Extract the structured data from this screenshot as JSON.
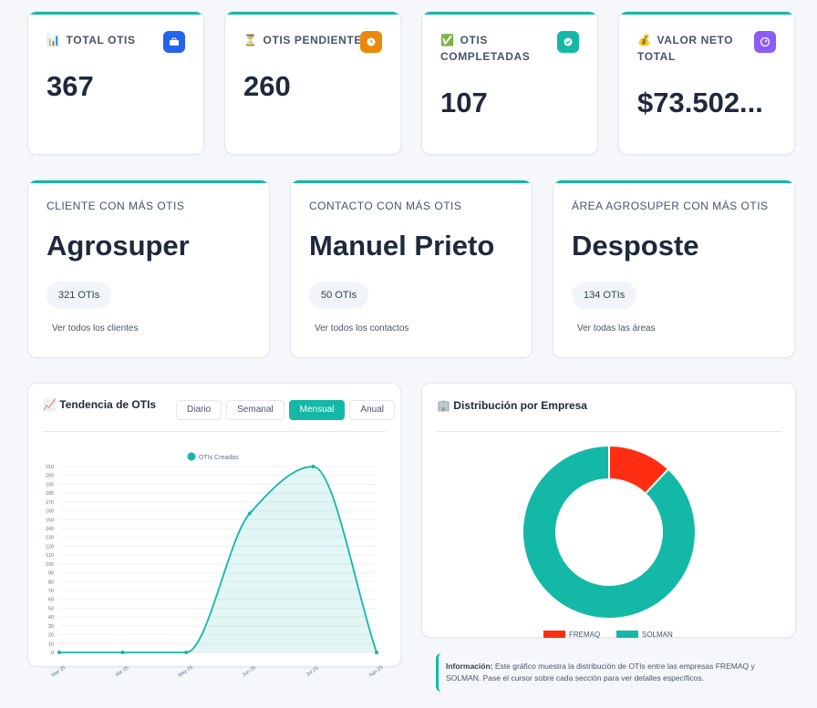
{
  "stats": [
    {
      "label": "TOTAL OTIS",
      "value": "367",
      "emoji": "📊",
      "icon": "briefcase-icon",
      "icon_color": "#2563eb"
    },
    {
      "label": "OTIS PENDIENTES",
      "value": "260",
      "emoji": "⏳",
      "icon": "clock-icon",
      "icon_color": "#ea8a0c"
    },
    {
      "label_lines": [
        "OTIS",
        "COMPLETADAS"
      ],
      "value": "107",
      "emoji": "✅",
      "icon": "check-circle-icon",
      "icon_color": "#14b8a6"
    },
    {
      "label_lines": [
        "VALOR NETO",
        "TOTAL"
      ],
      "value": "$73.502...",
      "emoji": "💰",
      "icon": "gauge-icon",
      "icon_color": "#8b5cf6"
    }
  ],
  "highlights": [
    {
      "label": "CLIENTE CON MÁS OTIS",
      "value": "Agrosuper",
      "count": "321 OTIs",
      "link": "Ver todos los clientes"
    },
    {
      "label": "CONTACTO CON MÁS OTIS",
      "value": "Manuel Prieto",
      "count": "50 OTIs",
      "link": "Ver todos los contactos"
    },
    {
      "label": "ÁREA AGROSUPER CON MÁS OTIS",
      "value": "Desposte",
      "count": "134 OTIs",
      "link": "Ver todas las áreas"
    }
  ],
  "trend": {
    "title": "📈 Tendencia de OTIs",
    "tabs": [
      "Diario",
      "Semanal",
      "Mensual",
      "Anual"
    ],
    "active_tab": "Mensual"
  },
  "distribution": {
    "title": "🏢 Distribución por Empresa"
  },
  "info": {
    "label": "Información:",
    "text": "Este gráfico muestra la distribución de OTIs entre las empresas FREMAQ y SOLMAN. Pase el cursor sobre cada sección para ver detalles específicos."
  },
  "chart_data": [
    {
      "type": "area",
      "categories": [
        "Mar 25",
        "Abr 25",
        "May 25",
        "Jun 25",
        "Jul 25",
        "Ago 25"
      ],
      "series": [
        {
          "name": "OTIs Creadas",
          "values": [
            0,
            0,
            0,
            157,
            210,
            0
          ],
          "color": "#14b8a6"
        }
      ],
      "ylim": [
        0,
        210
      ],
      "yticks": [
        0,
        10,
        20,
        30,
        40,
        50,
        60,
        70,
        80,
        90,
        100,
        110,
        120,
        130,
        140,
        150,
        160,
        170,
        180,
        190,
        200,
        210
      ],
      "grid": true,
      "legend": "top"
    },
    {
      "type": "pie",
      "donut": true,
      "labels": [
        "FREMAQ",
        "SOLMAN"
      ],
      "values": [
        12,
        88
      ],
      "colors": [
        "#ff2e12",
        "#14b8a6"
      ],
      "legend": "bottom"
    }
  ]
}
